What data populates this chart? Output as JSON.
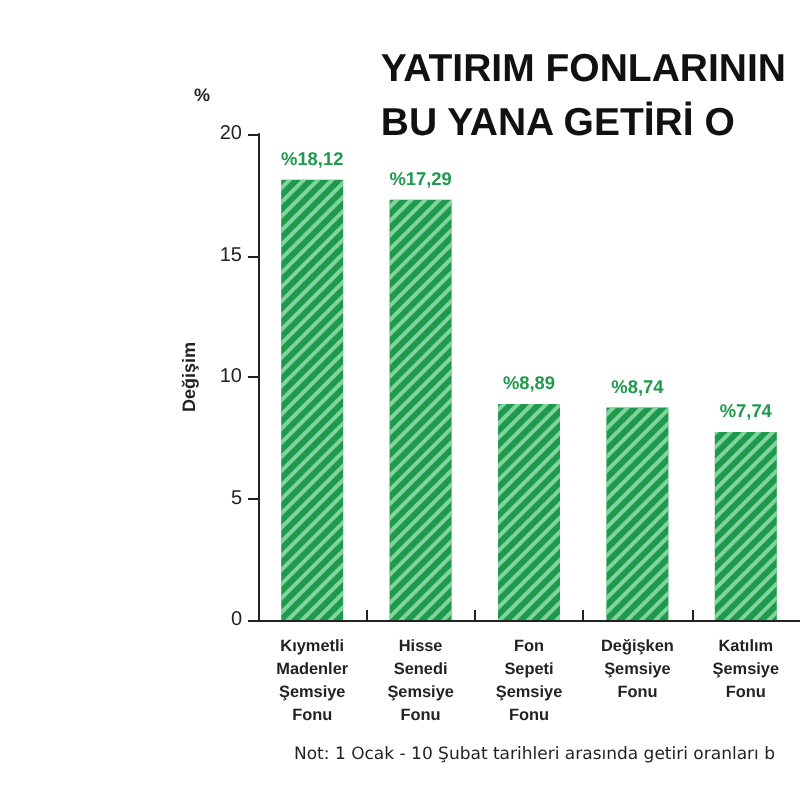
{
  "chart_data": {
    "type": "bar",
    "title": "YATIRIM FONLARININ\nBU YANA GETİRİ O",
    "ylabel": "Değişim",
    "annotations": [
      "%",
      "Not: 1 Ocak - 10 Şubat tarihleri arasında getiri oranları b"
    ],
    "categories": [
      "Kıymetli\nMadenler\nŞemsiye\nFonu",
      "Hisse\nSenedi\nŞemsiye\nFonu",
      "Fon\nSepeti\nŞemsiye\nFonu",
      "Değişken\nŞemsiye\nFonu",
      "Katılım\nŞemsiye\nFonu"
    ],
    "values": [
      18.12,
      17.29,
      8.89,
      8.74,
      7.74
    ],
    "value_labels": [
      "%18,12",
      "%17,29",
      "%8,89",
      "%8,74",
      "%7,74"
    ],
    "color": "#1f9a4c",
    "ylim": [
      0,
      20
    ],
    "yticks": [
      0,
      5,
      10,
      15,
      20
    ],
    "grid": false
  }
}
